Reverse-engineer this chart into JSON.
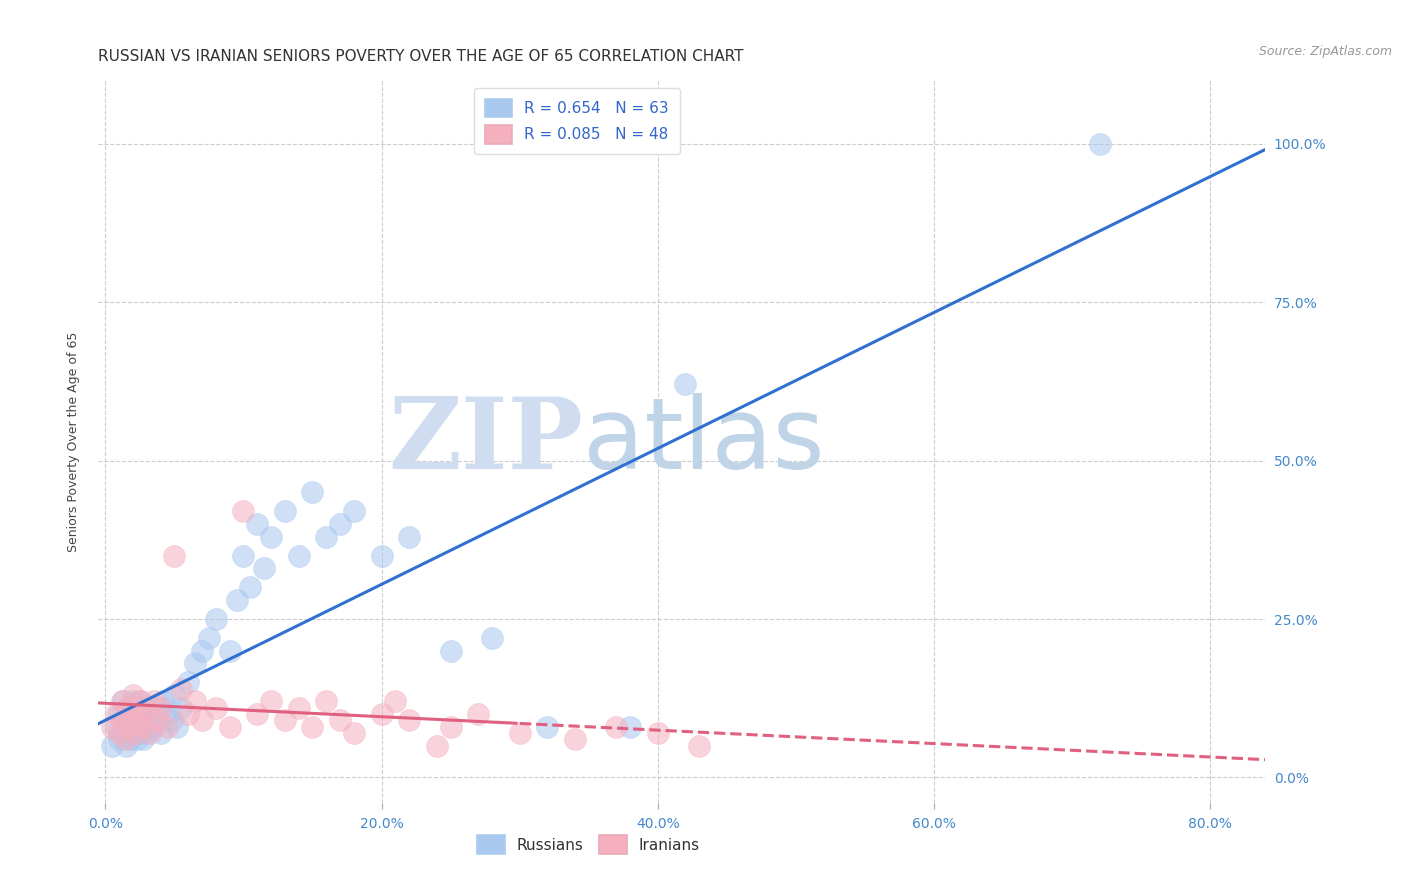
{
  "title": "RUSSIAN VS IRANIAN SENIORS POVERTY OVER THE AGE OF 65 CORRELATION CHART",
  "source": "Source: ZipAtlas.com",
  "xlabel_ticks": [
    "0.0%",
    "20.0%",
    "40.0%",
    "60.0%",
    "80.0%"
  ],
  "xlabel_tick_vals": [
    0,
    0.2,
    0.4,
    0.6,
    0.8
  ],
  "ylabel": "Seniors Poverty Over the Age of 65",
  "ylabel_ticks": [
    "0.0%",
    "25.0%",
    "50.0%",
    "75.0%",
    "100.0%"
  ],
  "ylabel_tick_vals": [
    0,
    0.25,
    0.5,
    0.75,
    1.0
  ],
  "xlim": [
    -0.005,
    0.84
  ],
  "ylim": [
    -0.04,
    1.1
  ],
  "russian_R": 0.654,
  "russian_N": 63,
  "iranian_R": 0.085,
  "iranian_N": 48,
  "russian_color": "#A8C8F0",
  "iranian_color": "#F5B0C0",
  "russian_line_color": "#3070D0",
  "iranian_line_color": "#E06080",
  "watermark_zip": "ZIP",
  "watermark_atlas": "atlas",
  "watermark_color_zip": "#D0DCF0",
  "watermark_color_atlas": "#C0D4E8",
  "background_color": "#FFFFFF",
  "russians_x": [
    0.005,
    0.008,
    0.01,
    0.01,
    0.012,
    0.013,
    0.015,
    0.015,
    0.016,
    0.017,
    0.018,
    0.018,
    0.02,
    0.02,
    0.02,
    0.022,
    0.022,
    0.023,
    0.024,
    0.025,
    0.025,
    0.026,
    0.027,
    0.028,
    0.028,
    0.03,
    0.03,
    0.032,
    0.035,
    0.038,
    0.04,
    0.042,
    0.045,
    0.048,
    0.05,
    0.052,
    0.055,
    0.06,
    0.065,
    0.07,
    0.075,
    0.08,
    0.09,
    0.095,
    0.1,
    0.105,
    0.11,
    0.115,
    0.12,
    0.13,
    0.14,
    0.15,
    0.16,
    0.17,
    0.18,
    0.2,
    0.22,
    0.25,
    0.28,
    0.32,
    0.38,
    0.42,
    0.72
  ],
  "russians_y": [
    0.05,
    0.08,
    0.06,
    0.1,
    0.07,
    0.12,
    0.05,
    0.09,
    0.08,
    0.11,
    0.06,
    0.1,
    0.07,
    0.09,
    0.12,
    0.08,
    0.11,
    0.06,
    0.1,
    0.07,
    0.12,
    0.09,
    0.06,
    0.11,
    0.08,
    0.07,
    0.1,
    0.09,
    0.08,
    0.11,
    0.07,
    0.12,
    0.1,
    0.09,
    0.13,
    0.08,
    0.11,
    0.15,
    0.18,
    0.2,
    0.22,
    0.25,
    0.2,
    0.28,
    0.35,
    0.3,
    0.4,
    0.33,
    0.38,
    0.42,
    0.35,
    0.45,
    0.38,
    0.4,
    0.42,
    0.35,
    0.38,
    0.2,
    0.22,
    0.08,
    0.08,
    0.62,
    1.0
  ],
  "iranians_x": [
    0.005,
    0.008,
    0.01,
    0.012,
    0.013,
    0.015,
    0.016,
    0.018,
    0.02,
    0.02,
    0.022,
    0.024,
    0.025,
    0.026,
    0.028,
    0.03,
    0.032,
    0.035,
    0.038,
    0.04,
    0.045,
    0.05,
    0.055,
    0.06,
    0.065,
    0.07,
    0.08,
    0.09,
    0.1,
    0.11,
    0.12,
    0.13,
    0.14,
    0.15,
    0.16,
    0.17,
    0.18,
    0.2,
    0.21,
    0.22,
    0.24,
    0.25,
    0.27,
    0.3,
    0.34,
    0.37,
    0.4,
    0.43
  ],
  "iranians_y": [
    0.08,
    0.1,
    0.07,
    0.12,
    0.09,
    0.06,
    0.11,
    0.08,
    0.1,
    0.13,
    0.07,
    0.11,
    0.09,
    0.12,
    0.08,
    0.1,
    0.07,
    0.12,
    0.09,
    0.11,
    0.08,
    0.35,
    0.14,
    0.1,
    0.12,
    0.09,
    0.11,
    0.08,
    0.42,
    0.1,
    0.12,
    0.09,
    0.11,
    0.08,
    0.12,
    0.09,
    0.07,
    0.1,
    0.12,
    0.09,
    0.05,
    0.08,
    0.1,
    0.07,
    0.06,
    0.08,
    0.07,
    0.05
  ],
  "title_fontsize": 11,
  "axis_label_fontsize": 9,
  "tick_fontsize": 10,
  "legend_fontsize": 11,
  "source_fontsize": 9
}
